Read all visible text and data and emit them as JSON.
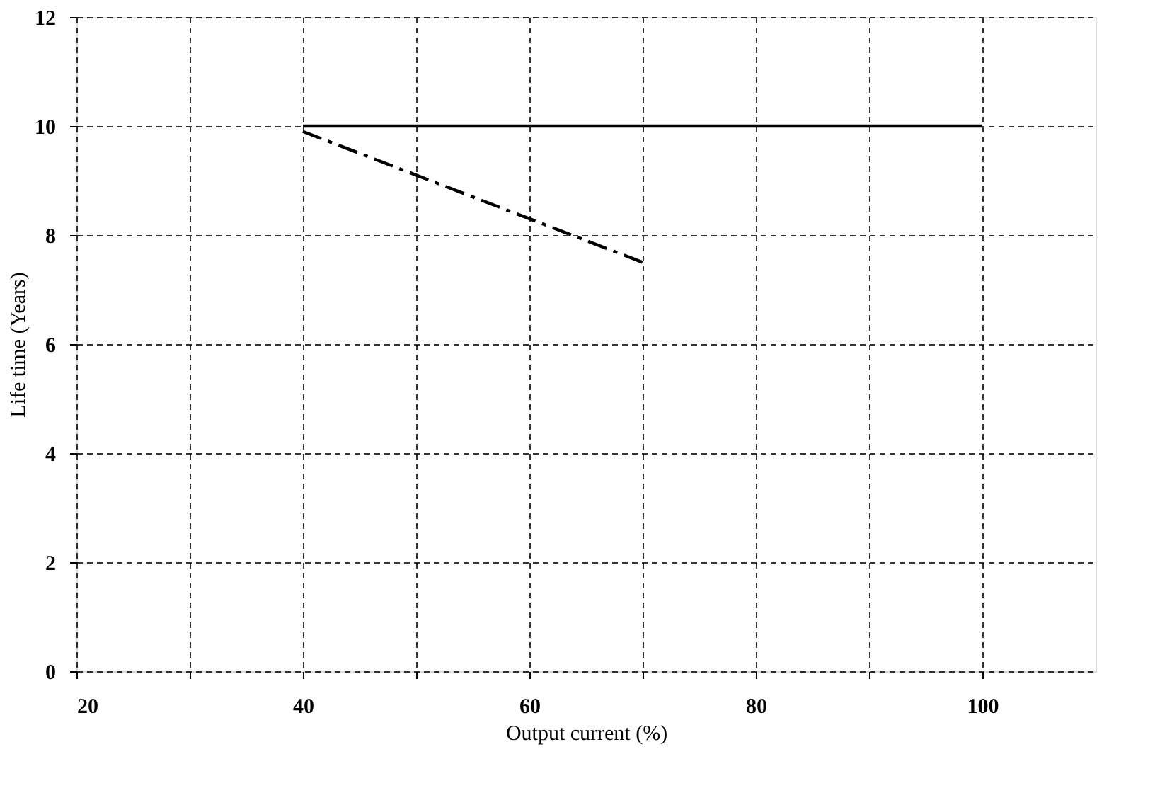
{
  "chart_data": {
    "type": "line",
    "xlabel": "Output current (%)",
    "ylabel": "Life time (Years)",
    "xlim": [
      20,
      110
    ],
    "xticks": [
      20,
      {
        "value": 30,
        "label": null
      },
      40,
      {
        "value": 50,
        "label": null
      },
      60,
      {
        "value": 70,
        "label": null
      },
      80,
      {
        "value": 90,
        "label": null
      },
      100
    ],
    "ylim": [
      0,
      12
    ],
    "yticks": [
      0,
      2,
      4,
      6,
      8,
      10,
      12
    ],
    "series": [
      {
        "color": "#000000",
        "x": [
          40,
          100
        ],
        "values": [
          10,
          10
        ],
        "line_style": "solid"
      },
      {
        "color": "#000000",
        "x": [
          40,
          70
        ],
        "values": [
          9.9,
          7.5
        ],
        "line_style": "dashed"
      }
    ],
    "grid": true,
    "marker": "none"
  }
}
